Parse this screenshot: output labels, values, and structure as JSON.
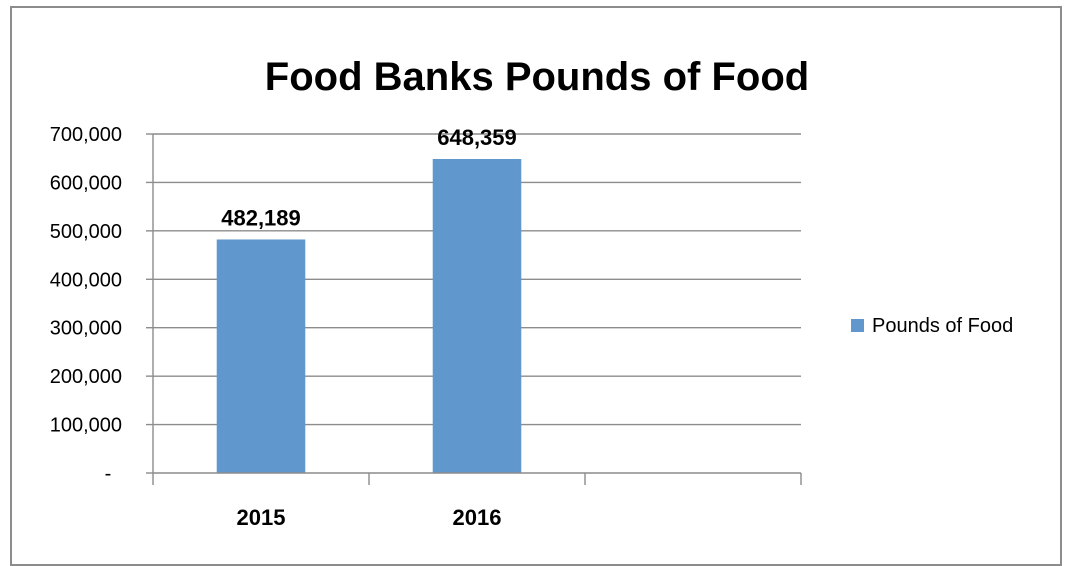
{
  "chart_data": {
    "type": "bar",
    "title": "Food Banks Pounds of Food",
    "categories": [
      "2015",
      "2016",
      ""
    ],
    "series": [
      {
        "name": "Pounds of Food",
        "values": [
          482189,
          648359,
          null
        ],
        "color": "#6097cc"
      }
    ],
    "data_labels": [
      "482,189",
      "648,359"
    ],
    "y_ticks": [
      0,
      100000,
      200000,
      300000,
      400000,
      500000,
      600000,
      700000
    ],
    "y_tick_labels": [
      "-",
      "100,000",
      "200,000",
      "300,000",
      "400,000",
      "500,000",
      "600,000",
      "700,000"
    ],
    "ylim": [
      0,
      700000
    ],
    "grid": true,
    "legend": "right",
    "xlabel": "",
    "ylabel": ""
  }
}
